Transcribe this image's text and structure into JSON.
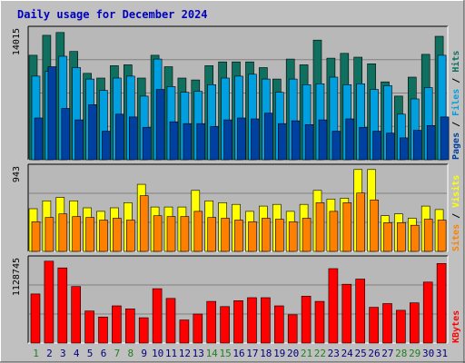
{
  "title": "Daily usage for December 2024",
  "colors": {
    "background": "#c0c0c0",
    "plot": "#b8b8b8",
    "title": "#0000c0",
    "hits": "#107060",
    "files": "#00a0e0",
    "pages": "#0040a0",
    "visits": "#ffff00",
    "sites": "#ff8000",
    "kbytes": "#ff0000",
    "weekend_label": "#208020",
    "weekday_label": "#000080"
  },
  "chart_data": [
    {
      "type": "bar",
      "panel": "top",
      "scale_label": "14015",
      "legend": [
        "Hits",
        "Files",
        "Pages"
      ],
      "x": [
        1,
        2,
        3,
        4,
        5,
        6,
        7,
        8,
        9,
        10,
        11,
        12,
        13,
        14,
        15,
        16,
        17,
        18,
        19,
        20,
        21,
        22,
        23,
        24,
        25,
        26,
        27,
        28,
        29,
        30,
        31
      ],
      "series": [
        {
          "name": "Hits",
          "values": [
            11000,
            13100,
            13400,
            11400,
            9100,
            8600,
            9900,
            10000,
            8600,
            11000,
            9800,
            8600,
            8400,
            9900,
            10300,
            10300,
            10300,
            9700,
            8500,
            10600,
            10000,
            12600,
            10700,
            11200,
            10800,
            10100,
            8200,
            6700,
            8700,
            11100,
            13000
          ]
        },
        {
          "name": "Files",
          "values": [
            8800,
            9300,
            10900,
            9700,
            8500,
            7300,
            8600,
            8800,
            6700,
            10600,
            7700,
            7100,
            7200,
            7900,
            8600,
            8800,
            9000,
            8500,
            7100,
            8500,
            7900,
            8000,
            8700,
            7900,
            8000,
            7400,
            7800,
            4800,
            6400,
            7600,
            11000
          ]
        },
        {
          "name": "Pages",
          "values": [
            4400,
            9800,
            5400,
            4200,
            5800,
            3000,
            4800,
            4500,
            3400,
            7400,
            4000,
            3800,
            3800,
            3500,
            4200,
            4400,
            4300,
            4900,
            3800,
            4100,
            3700,
            4200,
            3000,
            4300,
            3400,
            3000,
            2800,
            2300,
            3100,
            3600,
            4500
          ]
        }
      ]
    },
    {
      "type": "bar",
      "panel": "middle",
      "scale_label": "943",
      "legend": [
        "Visits",
        "Sites"
      ],
      "x": [
        1,
        2,
        3,
        4,
        5,
        6,
        7,
        8,
        9,
        10,
        11,
        12,
        13,
        14,
        15,
        16,
        17,
        18,
        19,
        20,
        21,
        22,
        23,
        24,
        25,
        26,
        27,
        28,
        29,
        30,
        31
      ],
      "series": [
        {
          "name": "Visits",
          "values": [
            490,
            580,
            620,
            580,
            500,
            460,
            500,
            560,
            770,
            510,
            510,
            510,
            700,
            580,
            560,
            540,
            460,
            520,
            540,
            460,
            540,
            700,
            600,
            610,
            940,
            940,
            410,
            430,
            380,
            520,
            480
          ]
        },
        {
          "name": "Sites",
          "values": [
            340,
            390,
            430,
            400,
            390,
            360,
            380,
            360,
            640,
            410,
            400,
            400,
            460,
            390,
            380,
            360,
            340,
            380,
            370,
            340,
            380,
            560,
            460,
            560,
            670,
            590,
            330,
            330,
            300,
            370,
            360
          ]
        }
      ]
    },
    {
      "type": "bar",
      "panel": "bottom",
      "scale_label": "1128745",
      "legend": [
        "KBytes"
      ],
      "x": [
        1,
        2,
        3,
        4,
        5,
        6,
        7,
        8,
        9,
        10,
        11,
        12,
        13,
        14,
        15,
        16,
        17,
        18,
        19,
        20,
        21,
        22,
        23,
        24,
        25,
        26,
        27,
        28,
        29,
        30,
        31
      ],
      "series": [
        {
          "name": "KBytes",
          "values": [
            660000,
            1100000,
            1010000,
            760000,
            430000,
            350000,
            500000,
            460000,
            340000,
            730000,
            600000,
            310000,
            390000,
            560000,
            490000,
            570000,
            610000,
            610000,
            500000,
            380000,
            630000,
            560000,
            1000000,
            790000,
            860000,
            480000,
            530000,
            440000,
            540000,
            820000,
            1070000
          ]
        }
      ]
    }
  ],
  "x_axis": {
    "labels": [
      "1",
      "2",
      "3",
      "4",
      "5",
      "6",
      "7",
      "8",
      "9",
      "10",
      "11",
      "12",
      "13",
      "14",
      "15",
      "16",
      "17",
      "18",
      "19",
      "20",
      "21",
      "22",
      "23",
      "24",
      "25",
      "26",
      "27",
      "28",
      "29",
      "30",
      "31"
    ],
    "weekend_days": [
      1,
      7,
      8,
      14,
      15,
      21,
      22,
      28,
      29
    ]
  }
}
